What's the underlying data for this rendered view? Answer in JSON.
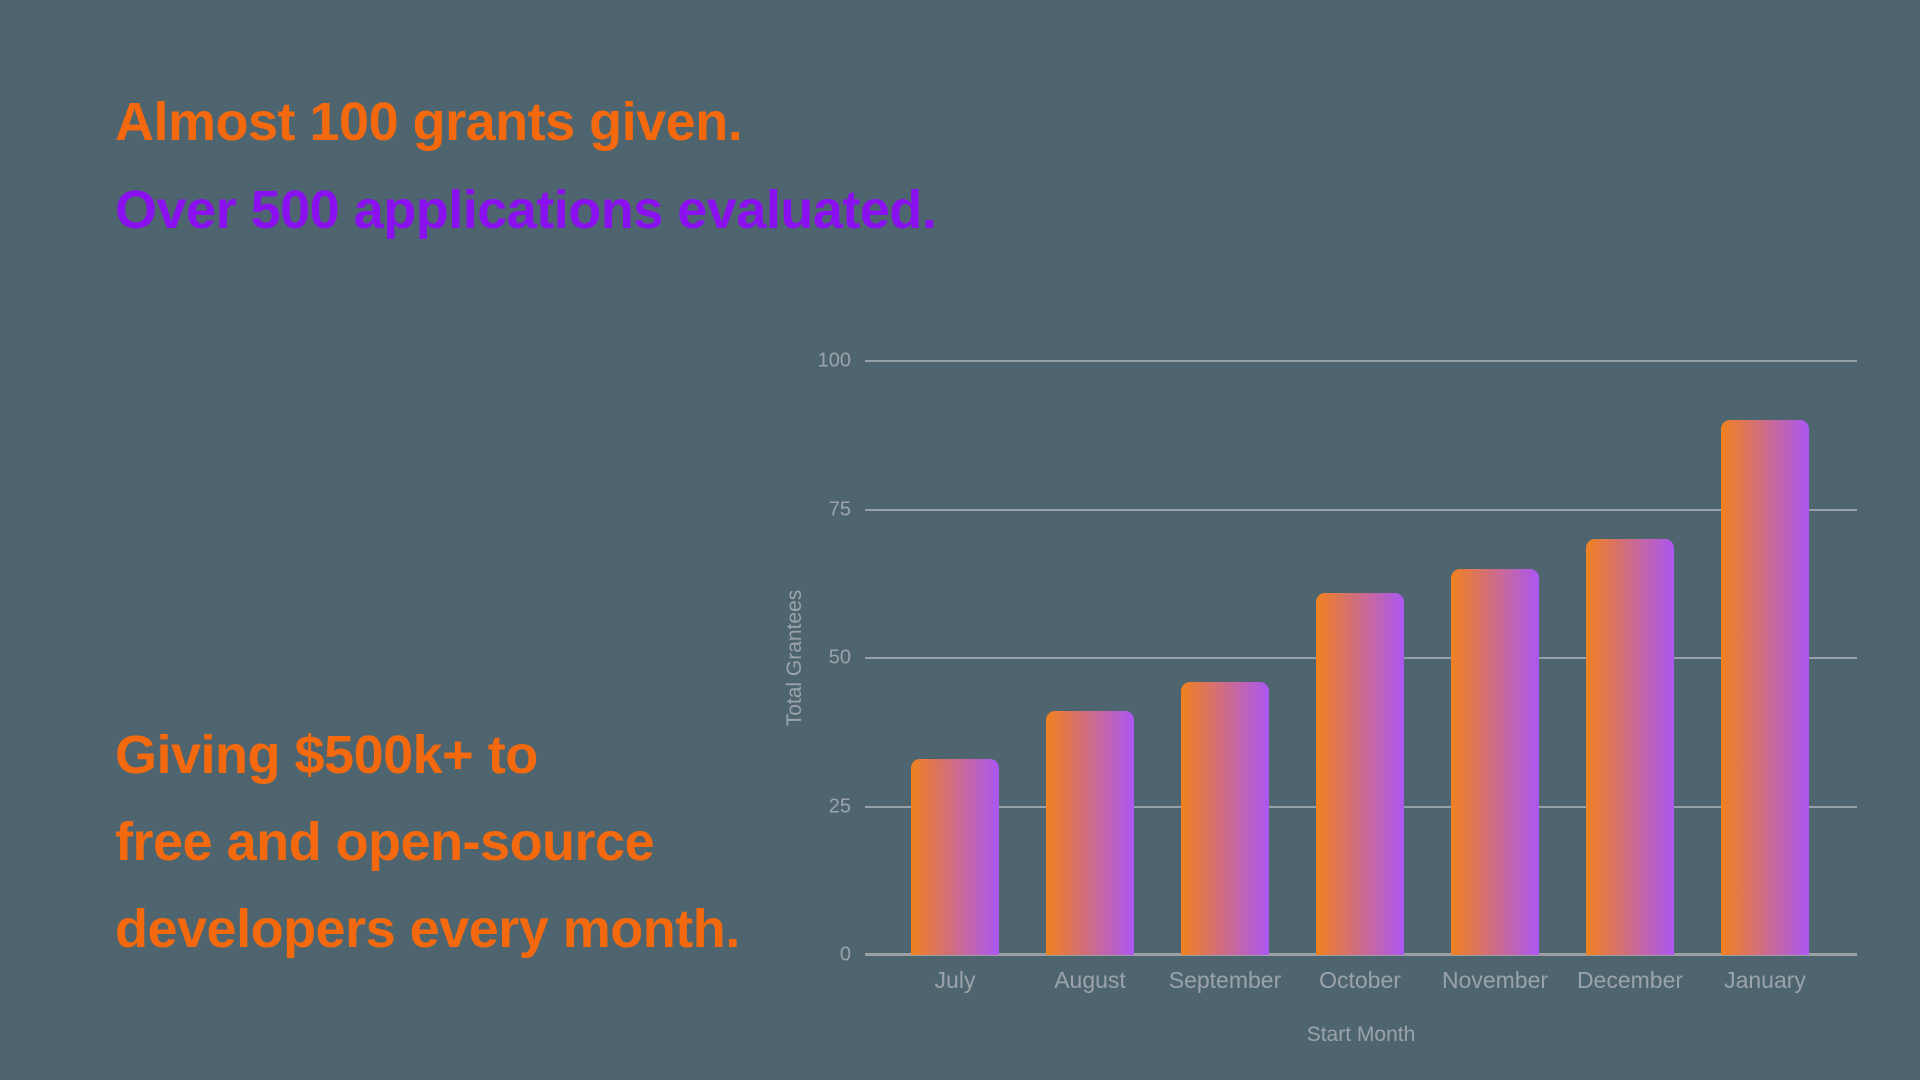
{
  "page": {
    "background_color": "#4E6570",
    "headline": {
      "line1": "Almost 100 grants given.",
      "line1_color": "#F4690E",
      "line2": "Over 500 applications evaluated.",
      "line2_color": "#8B10EF"
    },
    "stats_text": {
      "color": "#F4690E",
      "lines": [
        "Giving $500k+ to",
        "free and open-source",
        "developers every month."
      ]
    }
  },
  "chart_data": {
    "type": "bar",
    "title": "",
    "xlabel": "Start Month",
    "ylabel": "Total Grantees",
    "categories": [
      "July",
      "August",
      "September",
      "October",
      "November",
      "December",
      "January"
    ],
    "values": [
      33,
      41,
      46,
      61,
      65,
      70,
      90
    ],
    "yticks": [
      0,
      25,
      50,
      75,
      100
    ],
    "ylim": [
      0,
      100
    ],
    "grid": true,
    "legend": false,
    "bar_gradient_left": "#F0811F",
    "bar_gradient_right": "#AB57F3",
    "gridline_color": "#97A0A7",
    "axis_line_color": "#9DA0A3",
    "label_color": "#9BA3AA"
  }
}
